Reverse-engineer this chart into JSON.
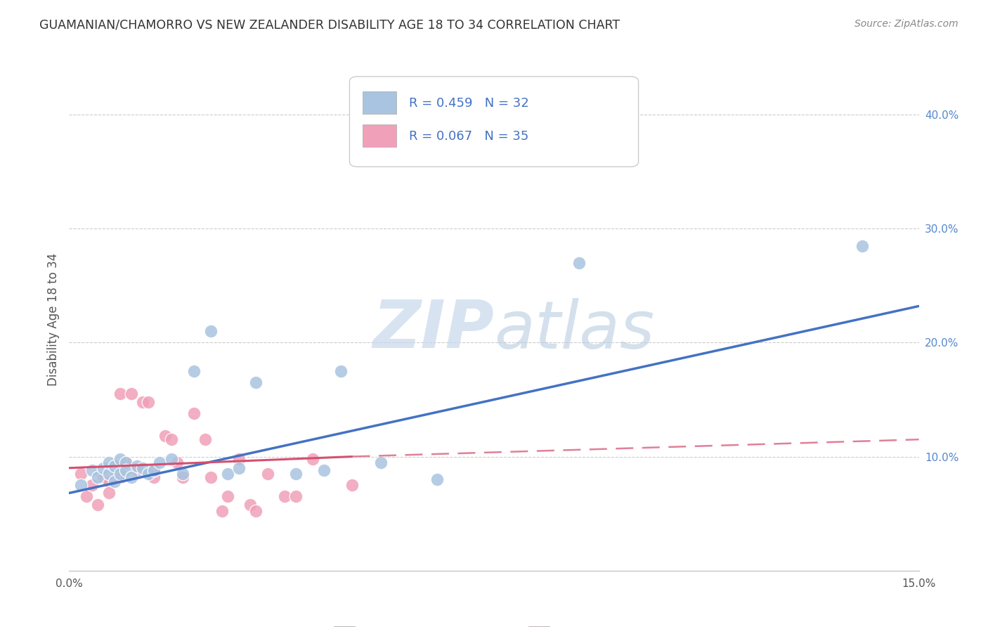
{
  "title": "GUAMANIAN/CHAMORRO VS NEW ZEALANDER DISABILITY AGE 18 TO 34 CORRELATION CHART",
  "source": "Source: ZipAtlas.com",
  "ylabel": "Disability Age 18 to 34",
  "xlim": [
    0.0,
    0.15
  ],
  "ylim": [
    0.0,
    0.44
  ],
  "legend_r1": "R = 0.459",
  "legend_n1": "N = 32",
  "legend_r2": "R = 0.067",
  "legend_n2": "N = 35",
  "blue_scatter_color": "#a8c4e0",
  "pink_scatter_color": "#f0a0b8",
  "blue_line_color": "#4472c4",
  "pink_line_color": "#d45070",
  "pink_dash_color": "#e08098",
  "watermark_color": "#c8d8ec",
  "guamanian_x": [
    0.002,
    0.004,
    0.005,
    0.006,
    0.007,
    0.007,
    0.008,
    0.008,
    0.009,
    0.009,
    0.01,
    0.01,
    0.011,
    0.012,
    0.013,
    0.014,
    0.015,
    0.016,
    0.018,
    0.02,
    0.022,
    0.025,
    0.028,
    0.03,
    0.033,
    0.04,
    0.045,
    0.048,
    0.055,
    0.065,
    0.09,
    0.14
  ],
  "guamanian_y": [
    0.075,
    0.088,
    0.082,
    0.09,
    0.085,
    0.095,
    0.092,
    0.078,
    0.085,
    0.098,
    0.095,
    0.088,
    0.082,
    0.092,
    0.09,
    0.085,
    0.088,
    0.095,
    0.098,
    0.085,
    0.175,
    0.21,
    0.085,
    0.09,
    0.165,
    0.085,
    0.088,
    0.175,
    0.095,
    0.08,
    0.27,
    0.285
  ],
  "newzealander_x": [
    0.002,
    0.003,
    0.004,
    0.005,
    0.006,
    0.007,
    0.007,
    0.008,
    0.008,
    0.009,
    0.009,
    0.01,
    0.011,
    0.012,
    0.013,
    0.014,
    0.015,
    0.015,
    0.017,
    0.018,
    0.019,
    0.02,
    0.022,
    0.024,
    0.025,
    0.027,
    0.028,
    0.03,
    0.032,
    0.033,
    0.035,
    0.038,
    0.04,
    0.043,
    0.05
  ],
  "newzealander_y": [
    0.085,
    0.065,
    0.075,
    0.058,
    0.082,
    0.078,
    0.068,
    0.092,
    0.088,
    0.082,
    0.155,
    0.095,
    0.155,
    0.088,
    0.148,
    0.148,
    0.082,
    0.088,
    0.118,
    0.115,
    0.095,
    0.082,
    0.138,
    0.115,
    0.082,
    0.052,
    0.065,
    0.098,
    0.058,
    0.052,
    0.085,
    0.065,
    0.065,
    0.098,
    0.075
  ],
  "blue_trendline": [
    [
      0.0,
      0.15
    ],
    [
      0.068,
      0.232
    ]
  ],
  "pink_solid_trendline": [
    [
      0.0,
      0.05
    ],
    [
      0.09,
      0.1
    ]
  ],
  "pink_dash_trendline": [
    [
      0.05,
      0.15
    ],
    [
      0.1,
      0.115
    ]
  ]
}
